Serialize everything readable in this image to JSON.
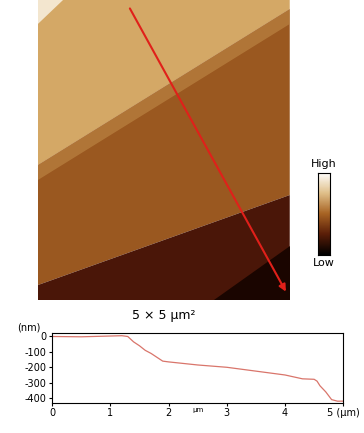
{
  "chart_data": [
    {
      "type": "image",
      "caption": "5 × 5 μm²",
      "colorbar_labels": {
        "high": "High",
        "low": "Low"
      }
    },
    {
      "type": "line",
      "y_label": "(nm)",
      "x_label": "μm",
      "color": "#d9756b",
      "x": [
        0,
        0.5,
        1.0,
        1.2,
        1.3,
        1.4,
        1.5,
        1.6,
        1.7,
        1.8,
        1.9,
        2.0,
        2.5,
        3.0,
        3.5,
        4.0,
        4.3,
        4.5,
        4.55,
        4.6,
        4.7,
        4.8,
        4.9,
        5.0
      ],
      "values": [
        0,
        -2,
        3,
        5,
        0,
        -35,
        -60,
        -90,
        -110,
        -135,
        -160,
        -165,
        -185,
        -200,
        -225,
        -250,
        -275,
        -278,
        -290,
        -320,
        -360,
        -410,
        -420,
        -420
      ],
      "xlim": [
        0,
        5
      ],
      "ylim": [
        -430,
        20
      ],
      "xticks": [
        0,
        1,
        2,
        3,
        4,
        {
          "value": 5,
          "label": "5 (μm)"
        }
      ],
      "yticks": [
        0,
        -100,
        -200,
        -300,
        -400
      ]
    }
  ]
}
